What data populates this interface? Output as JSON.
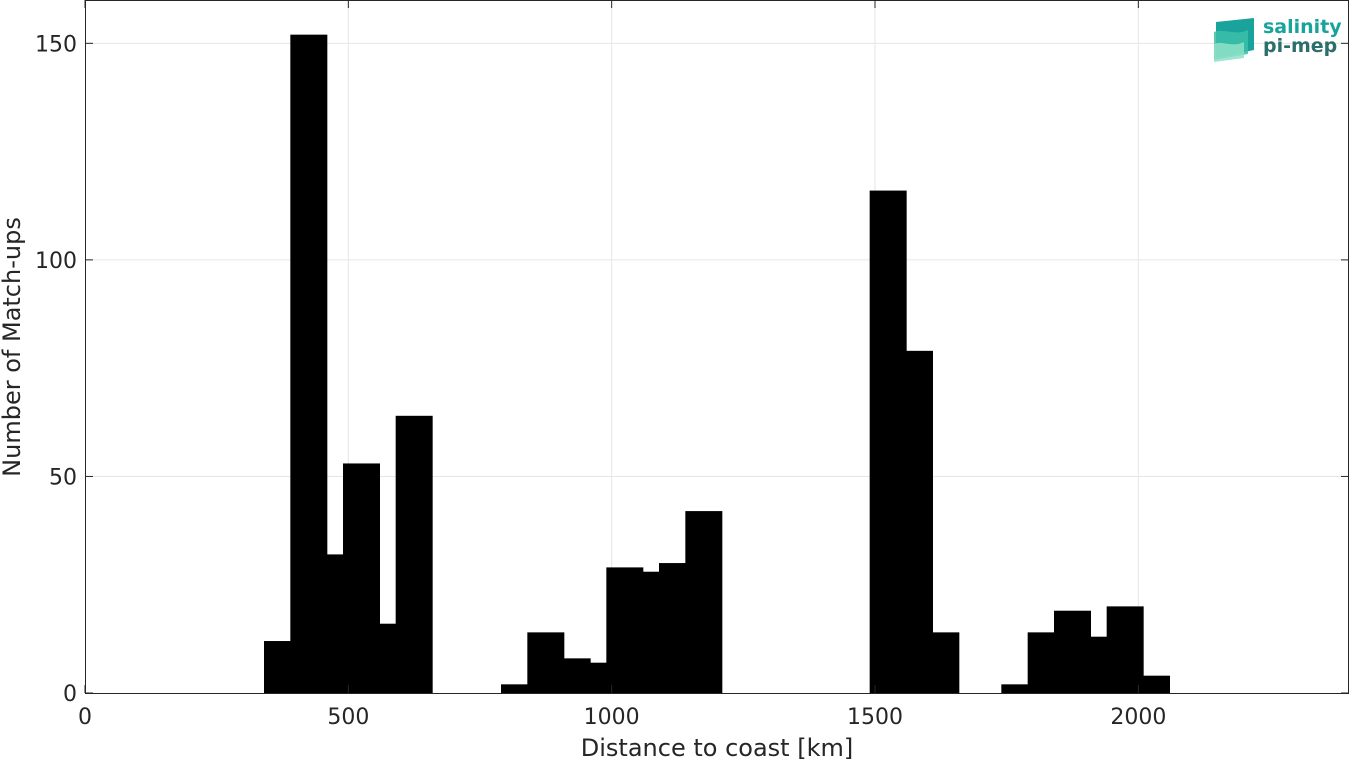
{
  "chart_data": {
    "type": "bar",
    "title": "",
    "xlabel": "Distance to coast [km]",
    "ylabel": "Number of Match-ups",
    "xlim": [
      0,
      2400
    ],
    "ylim": [
      0,
      160
    ],
    "grid": true,
    "xticks": [
      0,
      500,
      1000,
      1500,
      2000
    ],
    "yticks": [
      0,
      50,
      100,
      150
    ],
    "x": [
      375,
      425,
      475,
      525,
      575,
      625,
      825,
      875,
      925,
      975,
      1025,
      1075,
      1125,
      1175,
      1525,
      1575,
      1625,
      1775,
      1825,
      1875,
      1925,
      1975,
      2025
    ],
    "values": [
      12,
      152,
      32,
      53,
      16,
      64,
      2,
      14,
      8,
      7,
      29,
      28,
      30,
      42,
      116,
      79,
      14,
      2,
      14,
      19,
      13,
      20,
      4
    ],
    "bar_width": 37,
    "bar_color": "#000000"
  },
  "logo": {
    "line1": "salinity",
    "line2": "pi-mep",
    "color1": "#1aa39a",
    "color2": "#2c6e6a"
  }
}
